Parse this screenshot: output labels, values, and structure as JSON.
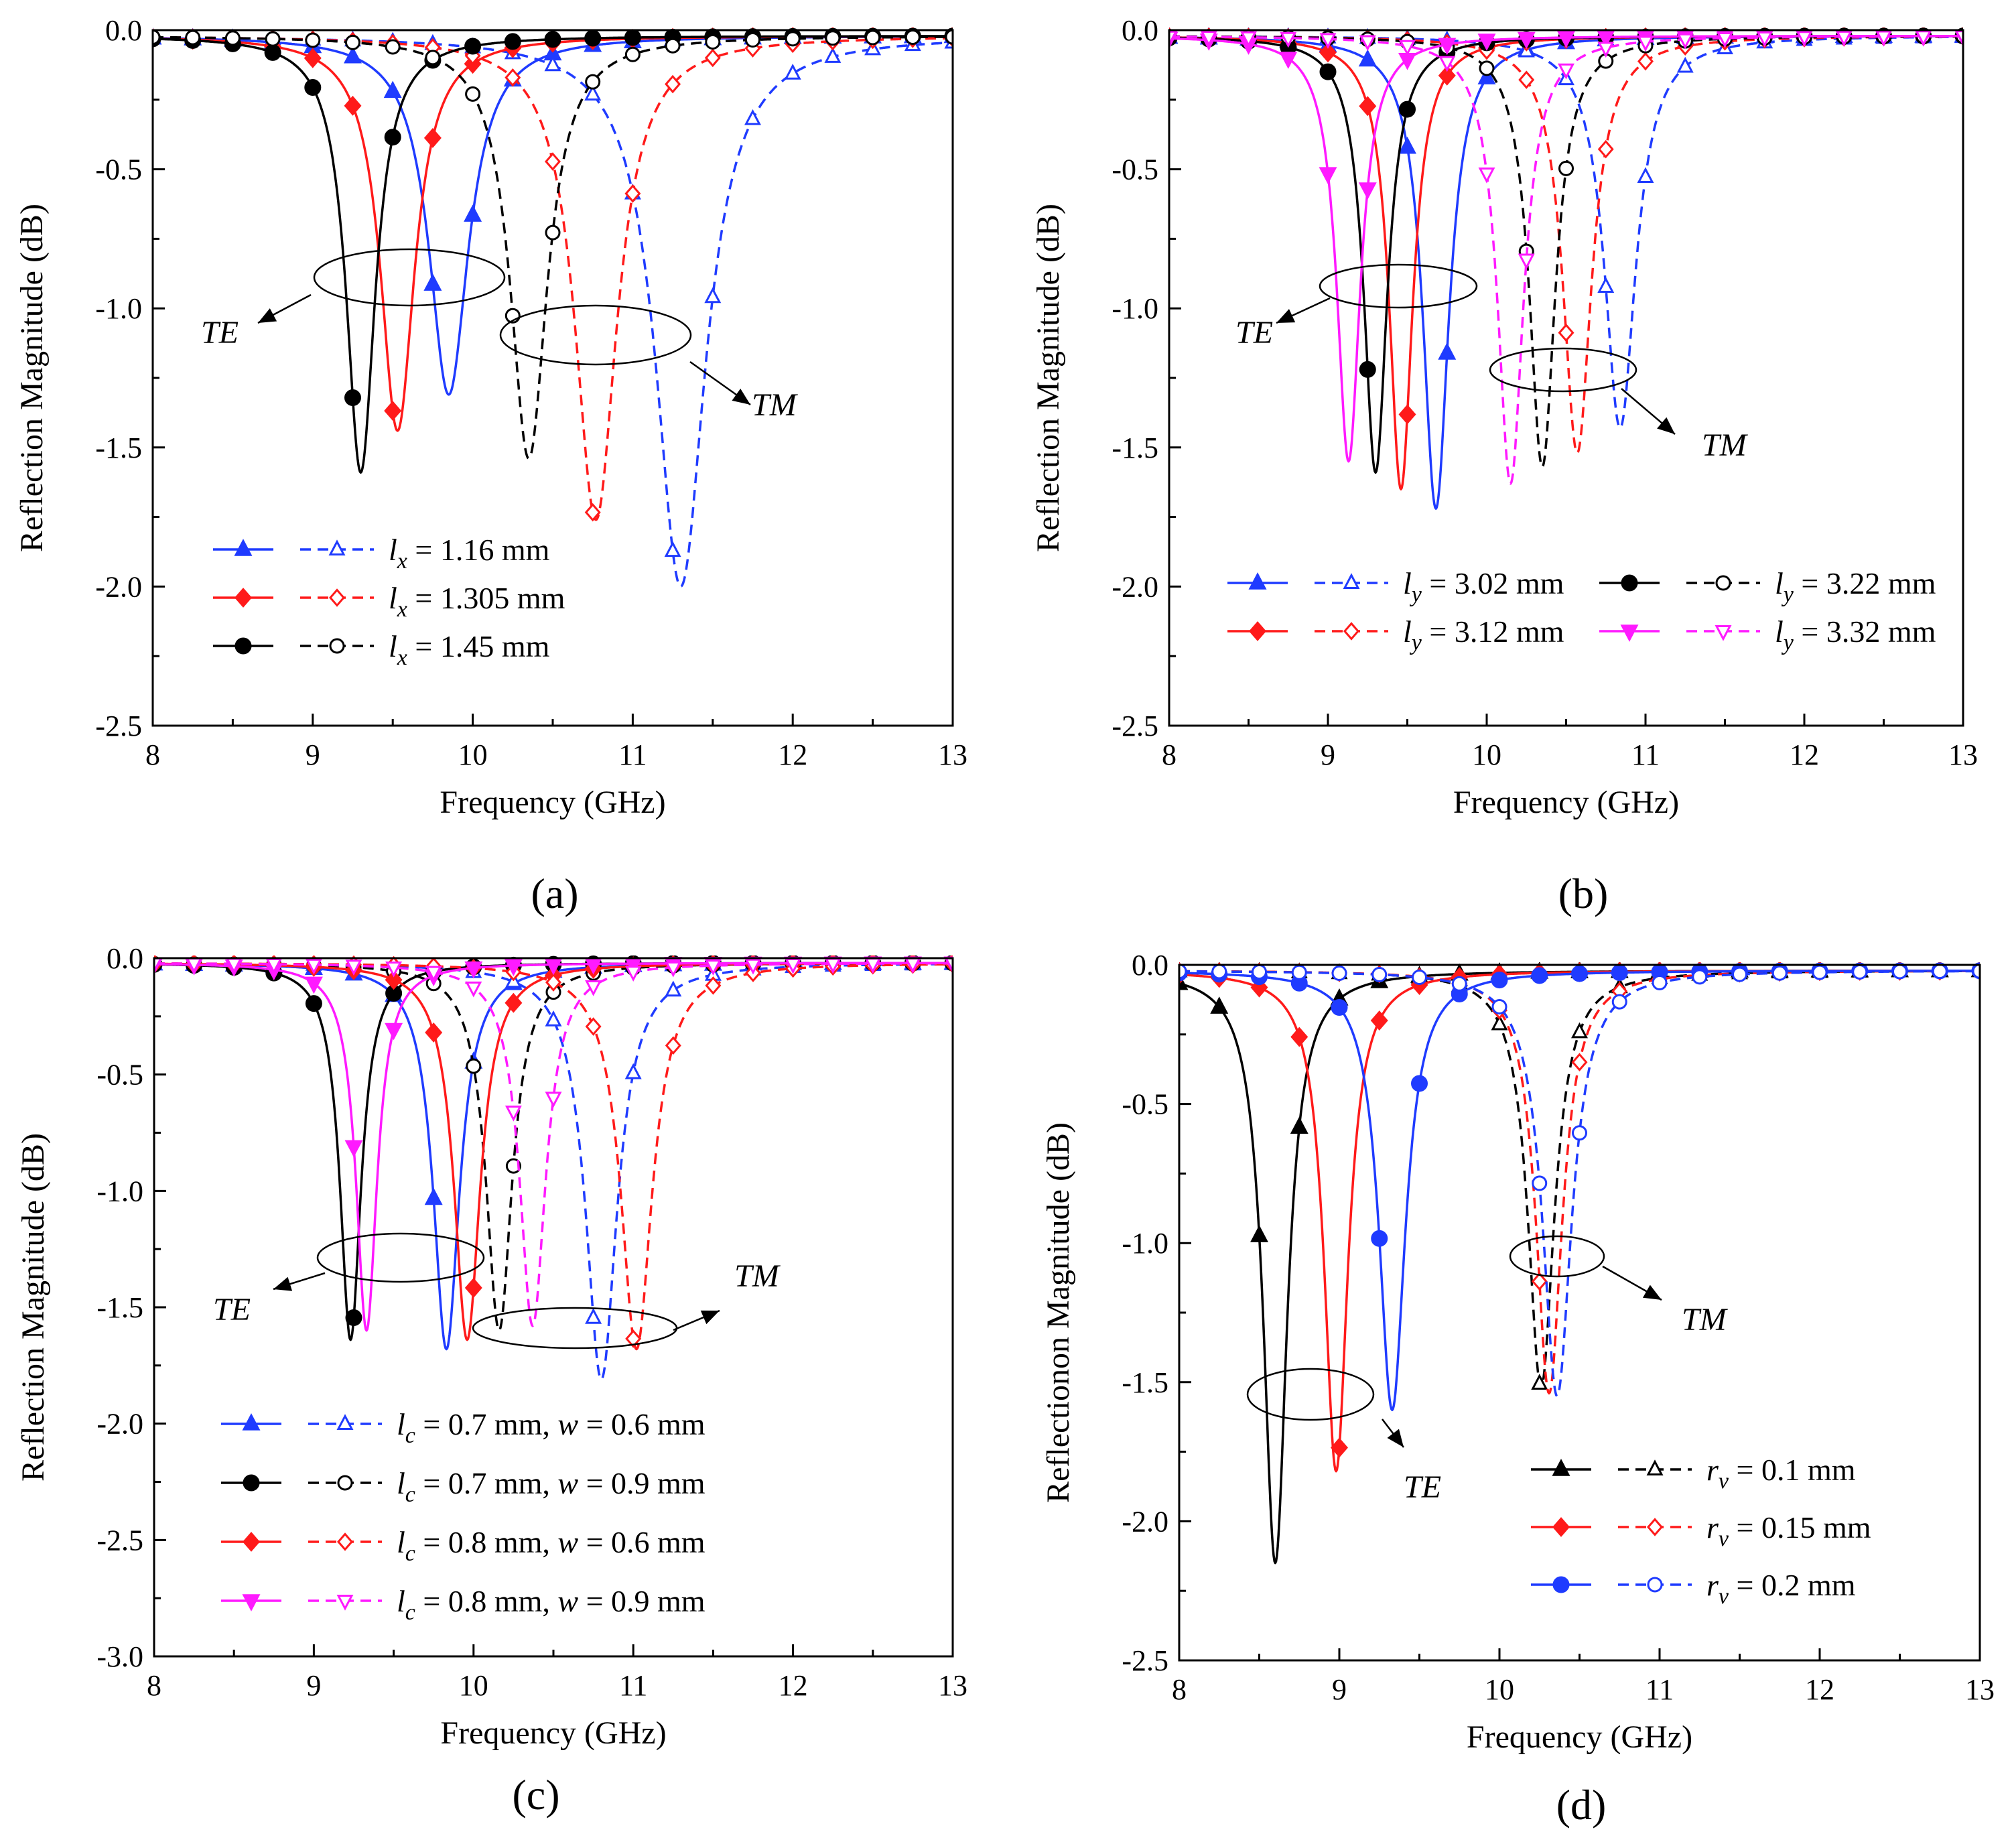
{
  "colors": {
    "blue": "#1f3bff",
    "red": "#ff1a1a",
    "black": "#000000",
    "magenta": "#ff1aff"
  },
  "chart_data": [
    {
      "type": "line",
      "panel_label": "(a)",
      "xlabel": "Frequency (GHz)",
      "ylabel": "Reflection Magnitude (dB)",
      "xlim": [
        8,
        13
      ],
      "ylim": [
        -2.5,
        0
      ],
      "xticks": [
        "8",
        "9",
        "10",
        "11",
        "12",
        "13"
      ],
      "yticks": [
        "0.0",
        "-0.5",
        "-1.0",
        "-1.5",
        "-2.0",
        "-2.5"
      ],
      "grid": false,
      "legend_position": "bottom-left",
      "annotations": [
        "TE",
        "TM"
      ],
      "series": [
        {
          "legend": {
            "symbol": "l",
            "sub": "x",
            "rest": " = 1.16 mm",
            "pre": ""
          },
          "color": "#1f3bff",
          "marker": "triangle-up",
          "te": {
            "f0": 9.85,
            "depth": 1.29,
            "width": 0.15
          },
          "tm": {
            "f0": 11.3,
            "depth": 1.98,
            "width": 0.19
          }
        },
        {
          "legend": {
            "symbol": "l",
            "sub": "x",
            "rest": " = 1.305 mm",
            "pre": ""
          },
          "color": "#ff1a1a",
          "marker": "diamond",
          "te": {
            "f0": 9.53,
            "depth": 1.42,
            "width": 0.13
          },
          "tm": {
            "f0": 10.77,
            "depth": 1.74,
            "width": 0.16
          }
        },
        {
          "legend": {
            "symbol": "l",
            "sub": "x",
            "rest": " = 1.45 mm",
            "pre": ""
          },
          "color": "#000000",
          "marker": "circle",
          "te": {
            "f0": 9.3,
            "depth": 1.57,
            "width": 0.11
          },
          "tm": {
            "f0": 10.35,
            "depth": 1.52,
            "width": 0.14
          }
        }
      ]
    },
    {
      "type": "line",
      "panel_label": "(b)",
      "xlabel": "Frequency (GHz)",
      "ylabel": "Reflection Magnitude (dB)",
      "xlim": [
        8,
        13
      ],
      "ylim": [
        -2.5,
        0
      ],
      "xticks": [
        "8",
        "9",
        "10",
        "11",
        "12",
        "13"
      ],
      "yticks": [
        "0.0",
        "-0.5",
        "-1.0",
        "-1.5",
        "-2.0",
        "-2.5"
      ],
      "grid": false,
      "legend_position": "bottom",
      "annotations": [
        "TE",
        "TM"
      ],
      "series": [
        {
          "legend": {
            "symbol": "l",
            "sub": "y",
            "rest": " = 3.02 mm",
            "pre": ""
          },
          "color": "#1f3bff",
          "marker": "triangle-up",
          "te": {
            "f0": 9.68,
            "depth": 1.7,
            "width": 0.1
          },
          "tm": {
            "f0": 10.84,
            "depth": 1.41,
            "width": 0.12
          }
        },
        {
          "legend": {
            "symbol": "l",
            "sub": "y",
            "rest": " = 3.12 mm",
            "pre": ""
          },
          "color": "#ff1a1a",
          "marker": "diamond",
          "te": {
            "f0": 9.46,
            "depth": 1.63,
            "width": 0.09
          },
          "tm": {
            "f0": 10.57,
            "depth": 1.5,
            "width": 0.11
          }
        },
        {
          "legend": {
            "symbol": "l",
            "sub": "y",
            "rest": " = 3.22 mm",
            "pre": ""
          },
          "color": "#000000",
          "marker": "circle",
          "te": {
            "f0": 9.3,
            "depth": 1.57,
            "width": 0.09
          },
          "tm": {
            "f0": 10.35,
            "depth": 1.55,
            "width": 0.1
          }
        },
        {
          "legend": {
            "symbol": "l",
            "sub": "y",
            "rest": " = 3.32 mm",
            "pre": ""
          },
          "color": "#ff1aff",
          "marker": "triangle-down",
          "te": {
            "f0": 9.13,
            "depth": 1.53,
            "width": 0.09
          },
          "tm": {
            "f0": 10.15,
            "depth": 1.61,
            "width": 0.1
          }
        }
      ]
    },
    {
      "type": "line",
      "panel_label": "(c)",
      "xlabel": "Frequency (GHz)",
      "ylabel": "Reflection Magnitude (dB)",
      "xlim": [
        8,
        13
      ],
      "ylim": [
        -3.0,
        0
      ],
      "xticks": [
        "8",
        "9",
        "10",
        "11",
        "12",
        "13"
      ],
      "yticks": [
        "0.0",
        "-0.5",
        "-1.0",
        "-1.5",
        "-2.0",
        "-2.5",
        "-3.0"
      ],
      "grid": false,
      "legend_position": "bottom-left",
      "annotations": [
        "TE",
        "TM"
      ],
      "series": [
        {
          "legend": {
            "symbol": "l",
            "sub": "c",
            "rest": " = 0.7 mm, ",
            "w": "w",
            "wrest": " = 0.6 mm",
            "pre": ""
          },
          "color": "#1f3bff",
          "marker": "triangle-up",
          "te": {
            "f0": 9.83,
            "depth": 1.66,
            "width": 0.1
          },
          "tm": {
            "f0": 10.8,
            "depth": 1.79,
            "width": 0.12
          }
        },
        {
          "legend": {
            "symbol": "l",
            "sub": "c",
            "rest": " = 0.7 mm, ",
            "w": "w",
            "wrest": " = 0.9 mm",
            "pre": ""
          },
          "color": "#000000",
          "marker": "circle",
          "te": {
            "f0": 9.23,
            "depth": 1.62,
            "width": 0.08
          },
          "tm": {
            "f0": 10.16,
            "depth": 1.58,
            "width": 0.1
          }
        },
        {
          "legend": {
            "symbol": "l",
            "sub": "c",
            "rest": " = 0.8 mm, ",
            "w": "w",
            "wrest": " = 0.6 mm",
            "pre": ""
          },
          "color": "#ff1a1a",
          "marker": "diamond",
          "te": {
            "f0": 9.96,
            "depth": 1.62,
            "width": 0.1
          },
          "tm": {
            "f0": 11.02,
            "depth": 1.66,
            "width": 0.12
          }
        },
        {
          "legend": {
            "symbol": "l",
            "sub": "c",
            "rest": " = 0.8 mm, ",
            "w": "w",
            "wrest": " = 0.9 mm",
            "pre": ""
          },
          "color": "#ff1aff",
          "marker": "triangle-down",
          "te": {
            "f0": 9.33,
            "depth": 1.58,
            "width": 0.08
          },
          "tm": {
            "f0": 10.37,
            "depth": 1.56,
            "width": 0.1
          }
        }
      ]
    },
    {
      "type": "line",
      "panel_label": "(d)",
      "xlabel": "Frequency (GHz)",
      "ylabel": "Reflectionon Magnitude (dB)",
      "xlim": [
        8,
        13
      ],
      "ylim": [
        -2.5,
        0
      ],
      "xticks": [
        "8",
        "9",
        "10",
        "11",
        "12",
        "13"
      ],
      "yticks": [
        "0.0",
        "-0.5",
        "-1.0",
        "-1.5",
        "-2.0",
        "-2.5"
      ],
      "grid": false,
      "legend_position": "bottom-right",
      "annotations": [
        "TE",
        "TM"
      ],
      "series": [
        {
          "legend": {
            "symbol": "r",
            "sub": "v",
            "rest": " = 0.1 mm",
            "pre": ""
          },
          "color": "#000000",
          "marker": "triangle-up",
          "te": {
            "f0": 8.6,
            "depth": 2.13,
            "width": 0.09
          },
          "tm": {
            "f0": 10.26,
            "depth": 1.5,
            "width": 0.1
          }
        },
        {
          "legend": {
            "symbol": "r",
            "sub": "v",
            "rest": " = 0.15 mm",
            "pre": ""
          },
          "color": "#ff1a1a",
          "marker": "diamond",
          "te": {
            "f0": 8.98,
            "depth": 1.8,
            "width": 0.09
          },
          "tm": {
            "f0": 10.31,
            "depth": 1.52,
            "width": 0.1
          }
        },
        {
          "legend": {
            "symbol": "r",
            "sub": "v",
            "rest": " = 0.2 mm",
            "pre": ""
          },
          "color": "#1f3bff",
          "marker": "circle",
          "te": {
            "f0": 9.33,
            "depth": 1.58,
            "width": 0.1
          },
          "tm": {
            "f0": 10.36,
            "depth": 1.53,
            "width": 0.11
          }
        }
      ]
    }
  ]
}
